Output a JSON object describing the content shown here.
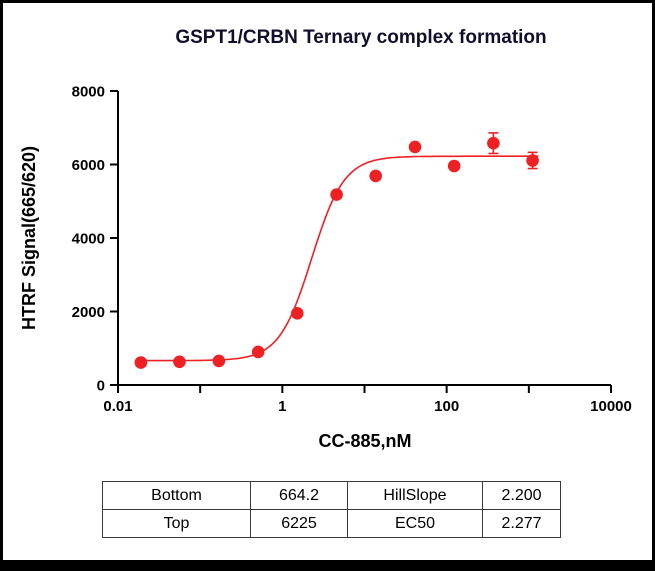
{
  "chart_data": {
    "type": "scatter",
    "title": "GSPT1/CRBN Ternary complex formation",
    "xlabel": "CC-885,nM",
    "ylabel": "HTRF Signal(665/620)",
    "x_scale": "log10",
    "xlog_range": [
      -2,
      4
    ],
    "ylim": [
      0,
      8000
    ],
    "yticks": [
      0,
      2000,
      4000,
      6000,
      8000
    ],
    "x_decades": [
      -2,
      -1,
      0,
      1,
      2,
      3,
      4
    ],
    "x_tick_labels": {
      "-2": "0.01",
      "0": "1",
      "2": "100",
      "4": "10000"
    },
    "color": "#ed2024",
    "legend": "none",
    "grid": false,
    "points": [
      {
        "x": 0.019,
        "y": 610,
        "err": 0
      },
      {
        "x": 0.056,
        "y": 630,
        "err": 0
      },
      {
        "x": 0.169,
        "y": 655,
        "err": 0
      },
      {
        "x": 0.508,
        "y": 900,
        "err": 0
      },
      {
        "x": 1.52,
        "y": 1950,
        "err": 0
      },
      {
        "x": 4.57,
        "y": 5180,
        "err": 0
      },
      {
        "x": 13.7,
        "y": 5690,
        "err": 0
      },
      {
        "x": 41.2,
        "y": 6480,
        "err": 0
      },
      {
        "x": 123.5,
        "y": 5960,
        "err": 0
      },
      {
        "x": 370.4,
        "y": 6580,
        "err": 280
      },
      {
        "x": 1111,
        "y": 6110,
        "err": 220
      }
    ],
    "fit": {
      "bottom": 664.2,
      "top": 6225,
      "ec50": 2.277,
      "hillslope": 2.2
    },
    "curve_x_range": [
      0.016,
      1300
    ]
  },
  "results_table": {
    "rows": [
      [
        "Bottom",
        "664.2",
        "HillSlope",
        "2.200"
      ],
      [
        "Top",
        "6225",
        "EC50",
        "2.277"
      ]
    ]
  }
}
